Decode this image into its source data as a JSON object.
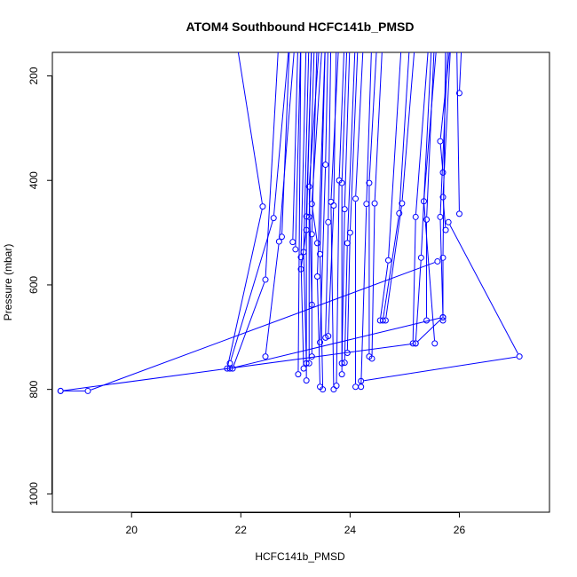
{
  "chart_data": {
    "type": "line",
    "title": "ATOM4 Southbound HCFC141b_PMSD",
    "xlabel": "HCFC141b_PMSD",
    "ylabel": "Pressure (mbar)",
    "xlim": [
      18.55,
      27.65
    ],
    "ylim": [
      1035,
      155
    ],
    "y_reversed": true,
    "x_ticks": [
      20,
      22,
      24,
      26
    ],
    "y_ticks": [
      200,
      400,
      600,
      800,
      1000
    ],
    "grid": false,
    "legend": "none",
    "series_color": "#0000ff",
    "marker": "open-circle",
    "series": [
      {
        "points": [
          [
            18.7,
            803
          ],
          [
            19.2,
            803
          ],
          [
            25.6,
            555
          ]
        ]
      },
      {
        "points": [
          [
            21.75,
            760
          ],
          [
            22.4,
            450
          ],
          [
            21.9,
            120
          ]
        ]
      },
      {
        "points": [
          [
            21.85,
            760
          ],
          [
            22.45,
            590
          ],
          [
            22.7,
            120
          ]
        ]
      },
      {
        "points": [
          [
            21.8,
            750
          ],
          [
            22.6,
            472
          ],
          [
            22.9,
            120
          ]
        ]
      },
      {
        "points": [
          [
            22.45,
            737
          ],
          [
            22.7,
            517
          ],
          [
            23.0,
            120
          ]
        ]
      },
      {
        "points": [
          [
            22.75,
            508
          ],
          [
            22.9,
            120
          ]
        ]
      },
      {
        "points": [
          [
            22.95,
            518
          ],
          [
            23.05,
            120
          ]
        ]
      },
      {
        "points": [
          [
            23.0,
            532
          ],
          [
            23.1,
            120
          ]
        ]
      },
      {
        "points": [
          [
            23.05,
            771
          ],
          [
            23.1,
            120
          ]
        ]
      },
      {
        "points": [
          [
            23.15,
            760
          ],
          [
            23.1,
            547
          ],
          [
            23.2,
            120
          ]
        ]
      },
      {
        "points": [
          [
            23.2,
            750
          ],
          [
            23.15,
            537
          ],
          [
            23.25,
            120
          ]
        ]
      },
      {
        "points": [
          [
            23.1,
            570
          ],
          [
            23.2,
            495
          ],
          [
            23.3,
            120
          ]
        ]
      },
      {
        "points": [
          [
            23.2,
            783
          ],
          [
            23.2,
            469
          ],
          [
            23.3,
            120
          ]
        ]
      },
      {
        "points": [
          [
            23.25,
            750
          ],
          [
            23.25,
            470
          ],
          [
            23.35,
            120
          ]
        ]
      },
      {
        "points": [
          [
            23.3,
            737
          ],
          [
            23.3,
            503
          ],
          [
            23.4,
            120
          ]
        ]
      },
      {
        "points": [
          [
            23.3,
            638
          ],
          [
            23.25,
            412
          ],
          [
            23.45,
            120
          ]
        ]
      },
      {
        "points": [
          [
            23.4,
            520
          ],
          [
            23.3,
            445
          ],
          [
            23.5,
            120
          ]
        ]
      },
      {
        "points": [
          [
            23.45,
            795
          ],
          [
            23.4,
            584
          ],
          [
            23.55,
            120
          ]
        ]
      },
      {
        "points": [
          [
            23.5,
            800
          ],
          [
            23.45,
            541
          ],
          [
            23.55,
            120
          ]
        ]
      },
      {
        "points": [
          [
            23.45,
            710
          ],
          [
            23.55,
            370
          ],
          [
            23.6,
            120
          ]
        ]
      },
      {
        "points": [
          [
            23.55,
            701
          ],
          [
            23.6,
            480
          ],
          [
            23.65,
            120
          ]
        ]
      },
      {
        "points": [
          [
            23.6,
            698
          ],
          [
            23.7,
            448
          ],
          [
            23.75,
            120
          ]
        ]
      },
      {
        "points": [
          [
            23.7,
            800
          ],
          [
            23.65,
            441
          ],
          [
            23.8,
            120
          ]
        ]
      },
      {
        "points": [
          [
            23.75,
            793
          ],
          [
            23.8,
            400
          ],
          [
            23.9,
            120
          ]
        ]
      },
      {
        "points": [
          [
            23.85,
            771
          ],
          [
            23.85,
            405
          ],
          [
            23.95,
            120
          ]
        ]
      },
      {
        "points": [
          [
            23.85,
            750
          ],
          [
            23.9,
            455
          ],
          [
            24.0,
            120
          ]
        ]
      },
      {
        "points": [
          [
            23.9,
            749
          ],
          [
            23.95,
            520
          ],
          [
            24.1,
            120
          ]
        ]
      },
      {
        "points": [
          [
            23.95,
            730
          ],
          [
            24.0,
            500
          ],
          [
            24.15,
            120
          ]
        ]
      },
      {
        "points": [
          [
            24.1,
            795
          ],
          [
            24.1,
            435
          ],
          [
            24.25,
            120
          ]
        ]
      },
      {
        "points": [
          [
            24.2,
            795
          ],
          [
            24.3,
            445
          ],
          [
            24.4,
            120
          ]
        ]
      },
      {
        "points": [
          [
            24.35,
            737
          ],
          [
            24.35,
            405
          ],
          [
            24.5,
            120
          ]
        ]
      },
      {
        "points": [
          [
            24.4,
            741
          ],
          [
            24.45,
            444
          ],
          [
            24.6,
            120
          ]
        ]
      },
      {
        "points": [
          [
            24.55,
            668
          ],
          [
            24.7,
            553
          ],
          [
            24.95,
            120
          ]
        ]
      },
      {
        "points": [
          [
            24.6,
            668
          ],
          [
            24.9,
            463
          ],
          [
            25.1,
            120
          ]
        ]
      },
      {
        "points": [
          [
            24.65,
            668
          ],
          [
            24.95,
            444
          ],
          [
            25.2,
            120
          ]
        ]
      },
      {
        "points": [
          [
            25.15,
            712
          ],
          [
            25.2,
            470
          ],
          [
            25.45,
            120
          ]
        ]
      },
      {
        "points": [
          [
            25.2,
            712
          ],
          [
            25.3,
            548
          ],
          [
            25.5,
            120
          ]
        ]
      },
      {
        "points": [
          [
            25.4,
            668
          ],
          [
            25.4,
            475
          ],
          [
            25.55,
            120
          ]
        ]
      },
      {
        "points": [
          [
            25.55,
            712
          ],
          [
            25.35,
            440
          ],
          [
            25.6,
            120
          ]
        ]
      },
      {
        "points": [
          [
            25.7,
            668
          ],
          [
            25.7,
            548
          ],
          [
            25.75,
            120
          ]
        ]
      },
      {
        "points": [
          [
            25.7,
            662
          ],
          [
            25.65,
            470
          ],
          [
            25.8,
            120
          ]
        ]
      },
      {
        "points": [
          [
            25.75,
            495
          ],
          [
            25.7,
            432
          ],
          [
            25.85,
            120
          ]
        ]
      },
      {
        "points": [
          [
            25.7,
            385
          ],
          [
            25.65,
            325
          ],
          [
            25.85,
            120
          ]
        ]
      },
      {
        "points": [
          [
            26.0,
            464
          ],
          [
            25.95,
            120
          ]
        ]
      },
      {
        "points": [
          [
            26.0,
            233
          ],
          [
            26.05,
            120
          ]
        ]
      },
      {
        "points": [
          [
            24.2,
            784
          ],
          [
            27.1,
            737
          ],
          [
            25.8,
            480
          ]
        ]
      },
      {
        "points": [
          [
            21.8,
            760
          ],
          [
            25.7,
            662
          ]
        ]
      },
      {
        "points": [
          [
            18.7,
            803
          ],
          [
            25.2,
            712
          ],
          [
            25.7,
            662
          ]
        ]
      }
    ]
  }
}
